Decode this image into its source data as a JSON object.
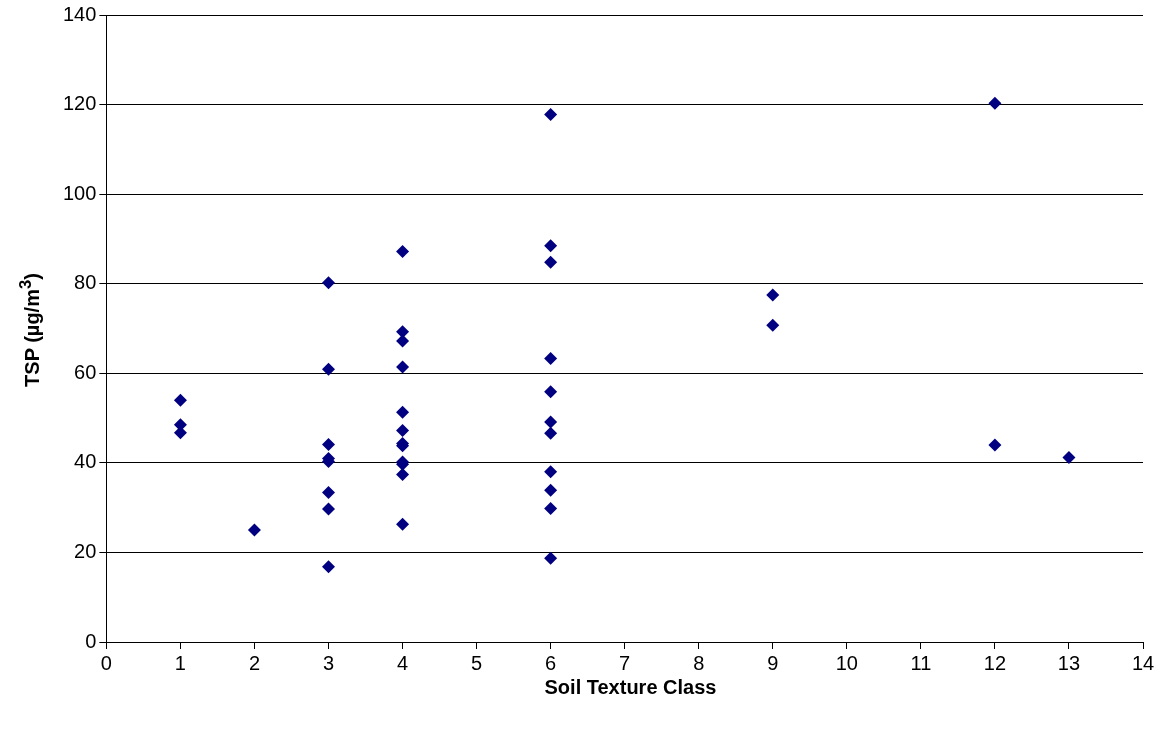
{
  "chart_data": {
    "type": "scatter",
    "xlabel": "Soil Texture Class",
    "ylabel": "TSP (µg/m$^{3}$)",
    "x": [
      1,
      1,
      1,
      2,
      3,
      3,
      3,
      3,
      3,
      3,
      3,
      3,
      4,
      4,
      4,
      4,
      4,
      4,
      4,
      4,
      4,
      4,
      4,
      4,
      6,
      6,
      6,
      6,
      6,
      6,
      6,
      6,
      6,
      6,
      6,
      9,
      9,
      12,
      12,
      13
    ],
    "series": [
      {
        "color": "#000080",
        "values": [
          54,
          48.5,
          46.7,
          25,
          80.2,
          60.9,
          44.1,
          41,
          40.3,
          33.4,
          29.7,
          16.8,
          87.2,
          69.3,
          67.2,
          61.4,
          51.3,
          47.2,
          44.3,
          43.8,
          40.2,
          39.7,
          37.4,
          26.3,
          117.8,
          88.5,
          84.8,
          63.3,
          55.9,
          49.1,
          46.6,
          38,
          33.9,
          29.8,
          18.7,
          77.5,
          70.7,
          120.3,
          44,
          41.2
        ]
      }
    ],
    "xlim": [
      0,
      14
    ],
    "xticks": [
      0,
      1,
      2,
      3,
      4,
      5,
      6,
      7,
      8,
      9,
      10,
      11,
      12,
      13,
      14
    ],
    "ylim": [
      0,
      140
    ],
    "yticks": [
      0,
      20,
      40,
      60,
      80,
      100,
      120,
      140
    ],
    "grid": "y",
    "legend": false,
    "marker": "diamond"
  }
}
